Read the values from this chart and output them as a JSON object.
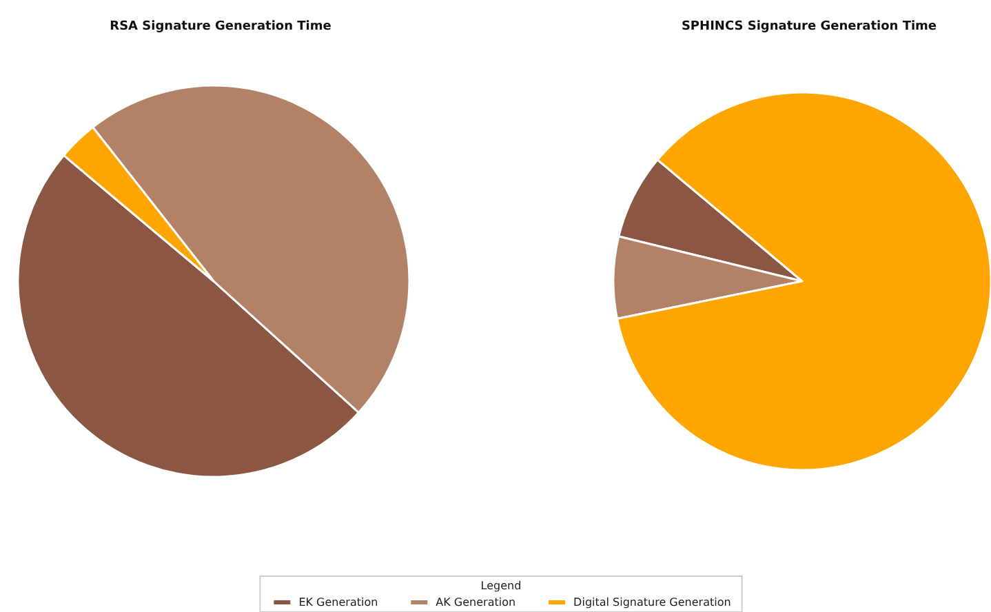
{
  "chart_data": {
    "type": "pie",
    "categories": [
      "EK Generation",
      "AK Generation",
      "Digital Signature Generation"
    ],
    "colors": [
      "#8b5742",
      "#b38266",
      "#ffa500"
    ],
    "legend": "bottom",
    "legend_title": "Legend",
    "series": [
      {
        "name": "RSA Signature Generation Time",
        "values": [
          49.4,
          47.3,
          3.3
        ]
      },
      {
        "name": "SPHINCS Signature Generation Time",
        "values": [
          7.3,
          7.0,
          85.7
        ]
      }
    ]
  }
}
